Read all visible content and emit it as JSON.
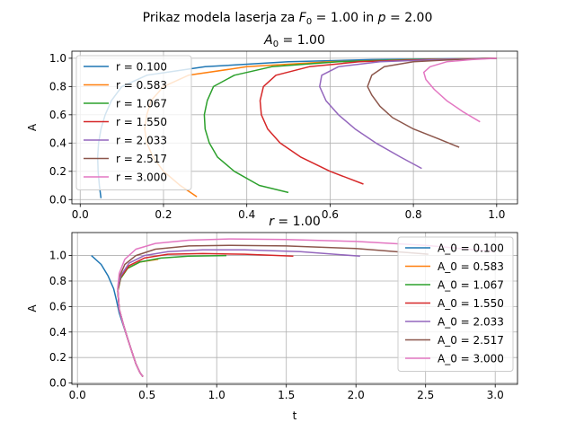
{
  "suptitle": "Prikaz modela laserja za F_0 = 1.00 in p = 2.00",
  "chart_data": [
    {
      "type": "line",
      "title": "A_0 = 1.00",
      "xlabel": "",
      "ylabel": "A",
      "xlim": [
        -0.02,
        1.05
      ],
      "ylim": [
        -0.03,
        1.05
      ],
      "xticks": [
        0.0,
        0.2,
        0.4,
        0.6,
        0.8,
        1.0
      ],
      "xtick_labels": [
        "0.0",
        "0.2",
        "0.4",
        "0.6",
        "0.8",
        "1.0"
      ],
      "yticks": [
        0.0,
        0.2,
        0.4,
        0.6,
        0.8,
        1.0
      ],
      "ytick_labels": [
        "0.0",
        "0.2",
        "0.4",
        "0.6",
        "0.8",
        "1.0"
      ],
      "grid": true,
      "legend_position": "upper-left",
      "series": [
        {
          "name": "r = 0.100",
          "color": "#1f77b4",
          "points": [
            [
              0.05,
              0.01
            ],
            [
              0.046,
              0.1
            ],
            [
              0.043,
              0.2
            ],
            [
              0.042,
              0.3
            ],
            [
              0.044,
              0.4
            ],
            [
              0.05,
              0.5
            ],
            [
              0.06,
              0.6
            ],
            [
              0.075,
              0.7
            ],
            [
              0.1,
              0.8
            ],
            [
              0.16,
              0.88
            ],
            [
              0.3,
              0.94
            ],
            [
              0.5,
              0.975
            ],
            [
              0.7,
              0.99
            ],
            [
              1.0,
              1.0
            ]
          ]
        },
        {
          "name": "r = 0.583",
          "color": "#ff7f0e",
          "points": [
            [
              0.28,
              0.02
            ],
            [
              0.24,
              0.1
            ],
            [
              0.2,
              0.2
            ],
            [
              0.175,
              0.3
            ],
            [
              0.16,
              0.4
            ],
            [
              0.155,
              0.5
            ],
            [
              0.16,
              0.6
            ],
            [
              0.17,
              0.7
            ],
            [
              0.2,
              0.8
            ],
            [
              0.26,
              0.88
            ],
            [
              0.4,
              0.94
            ],
            [
              0.6,
              0.975
            ],
            [
              0.8,
              0.99
            ],
            [
              1.0,
              1.0
            ]
          ]
        },
        {
          "name": "r = 1.067",
          "color": "#2ca02c",
          "points": [
            [
              0.5,
              0.05
            ],
            [
              0.43,
              0.1
            ],
            [
              0.37,
              0.2
            ],
            [
              0.33,
              0.3
            ],
            [
              0.31,
              0.4
            ],
            [
              0.3,
              0.5
            ],
            [
              0.298,
              0.6
            ],
            [
              0.305,
              0.7
            ],
            [
              0.32,
              0.8
            ],
            [
              0.37,
              0.88
            ],
            [
              0.46,
              0.94
            ],
            [
              0.62,
              0.975
            ],
            [
              0.8,
              0.99
            ],
            [
              1.0,
              1.0
            ]
          ]
        },
        {
          "name": "r = 1.550",
          "color": "#d62728",
          "points": [
            [
              0.68,
              0.11
            ],
            [
              0.6,
              0.2
            ],
            [
              0.53,
              0.3
            ],
            [
              0.48,
              0.4
            ],
            [
              0.45,
              0.5
            ],
            [
              0.435,
              0.6
            ],
            [
              0.432,
              0.7
            ],
            [
              0.44,
              0.8
            ],
            [
              0.47,
              0.88
            ],
            [
              0.55,
              0.94
            ],
            [
              0.67,
              0.975
            ],
            [
              0.83,
              0.99
            ],
            [
              1.0,
              1.0
            ]
          ]
        },
        {
          "name": "r = 2.033",
          "color": "#9467bd",
          "points": [
            [
              0.82,
              0.22
            ],
            [
              0.77,
              0.3
            ],
            [
              0.71,
              0.4
            ],
            [
              0.66,
              0.5
            ],
            [
              0.62,
              0.6
            ],
            [
              0.59,
              0.7
            ],
            [
              0.575,
              0.8
            ],
            [
              0.58,
              0.88
            ],
            [
              0.62,
              0.94
            ],
            [
              0.72,
              0.975
            ],
            [
              0.86,
              0.99
            ],
            [
              1.0,
              1.0
            ]
          ]
        },
        {
          "name": "r = 2.517",
          "color": "#8c564b",
          "points": [
            [
              0.91,
              0.37
            ],
            [
              0.86,
              0.43
            ],
            [
              0.8,
              0.5
            ],
            [
              0.75,
              0.58
            ],
            [
              0.72,
              0.66
            ],
            [
              0.7,
              0.74
            ],
            [
              0.69,
              0.8
            ],
            [
              0.7,
              0.88
            ],
            [
              0.73,
              0.94
            ],
            [
              0.8,
              0.975
            ],
            [
              0.9,
              0.99
            ],
            [
              1.0,
              1.0
            ]
          ]
        },
        {
          "name": "r = 3.000",
          "color": "#e377c2",
          "points": [
            [
              0.96,
              0.55
            ],
            [
              0.92,
              0.62
            ],
            [
              0.88,
              0.7
            ],
            [
              0.85,
              0.78
            ],
            [
              0.83,
              0.85
            ],
            [
              0.825,
              0.9
            ],
            [
              0.84,
              0.94
            ],
            [
              0.88,
              0.975
            ],
            [
              0.94,
              0.99
            ],
            [
              1.0,
              1.0
            ]
          ]
        }
      ]
    },
    {
      "type": "line",
      "title": "r = 1.00",
      "xlabel": "t",
      "ylabel": "A",
      "xlim": [
        -0.04,
        3.16
      ],
      "ylim": [
        -0.01,
        1.18
      ],
      "xticks": [
        0.0,
        0.5,
        1.0,
        1.5,
        2.0,
        2.5,
        3.0
      ],
      "xtick_labels": [
        "0.0",
        "0.5",
        "1.0",
        "1.5",
        "2.0",
        "2.5",
        "3.0"
      ],
      "yticks": [
        0.0,
        0.2,
        0.4,
        0.6,
        0.8,
        1.0
      ],
      "ytick_labels": [
        "0.0",
        "0.2",
        "0.4",
        "0.6",
        "0.8",
        "1.0"
      ],
      "grid": true,
      "legend_position": "upper-right",
      "series": [
        {
          "name": "A_0 = 0.100",
          "color": "#1f77b4",
          "points": [
            [
              0.1,
              1.0
            ],
            [
              0.17,
              0.93
            ],
            [
              0.22,
              0.84
            ],
            [
              0.26,
              0.74
            ],
            [
              0.28,
              0.65
            ],
            [
              0.3,
              0.55
            ],
            [
              0.33,
              0.45
            ],
            [
              0.36,
              0.35
            ],
            [
              0.39,
              0.25
            ],
            [
              0.42,
              0.15
            ],
            [
              0.45,
              0.08
            ],
            [
              0.47,
              0.05
            ]
          ]
        },
        {
          "name": "A_0 = 0.583",
          "color": "#ff7f0e",
          "points": [
            [
              0.58,
              0.97
            ],
            [
              0.45,
              0.95
            ],
            [
              0.36,
              0.9
            ],
            [
              0.31,
              0.82
            ],
            [
              0.29,
              0.72
            ],
            [
              0.3,
              0.58
            ],
            [
              0.33,
              0.46
            ],
            [
              0.36,
              0.35
            ],
            [
              0.39,
              0.25
            ],
            [
              0.42,
              0.15
            ],
            [
              0.45,
              0.08
            ],
            [
              0.47,
              0.05
            ]
          ]
        },
        {
          "name": "A_0 = 1.067",
          "color": "#2ca02c",
          "points": [
            [
              1.07,
              1.0
            ],
            [
              0.8,
              0.995
            ],
            [
              0.6,
              0.98
            ],
            [
              0.45,
              0.95
            ],
            [
              0.36,
              0.9
            ],
            [
              0.31,
              0.82
            ],
            [
              0.29,
              0.72
            ],
            [
              0.3,
              0.58
            ],
            [
              0.33,
              0.46
            ],
            [
              0.36,
              0.35
            ],
            [
              0.39,
              0.25
            ],
            [
              0.42,
              0.15
            ],
            [
              0.45,
              0.08
            ],
            [
              0.47,
              0.05
            ]
          ]
        },
        {
          "name": "A_0 = 1.550",
          "color": "#d62728",
          "points": [
            [
              1.55,
              0.995
            ],
            [
              1.2,
              1.01
            ],
            [
              0.9,
              1.015
            ],
            [
              0.65,
              1.01
            ],
            [
              0.48,
              0.98
            ],
            [
              0.37,
              0.92
            ],
            [
              0.31,
              0.83
            ],
            [
              0.29,
              0.73
            ],
            [
              0.3,
              0.58
            ],
            [
              0.33,
              0.46
            ],
            [
              0.36,
              0.35
            ],
            [
              0.39,
              0.25
            ],
            [
              0.42,
              0.15
            ],
            [
              0.45,
              0.08
            ],
            [
              0.47,
              0.05
            ]
          ]
        },
        {
          "name": "A_0 = 2.033",
          "color": "#9467bd",
          "points": [
            [
              2.03,
              0.995
            ],
            [
              1.6,
              1.03
            ],
            [
              1.2,
              1.045
            ],
            [
              0.9,
              1.045
            ],
            [
              0.65,
              1.03
            ],
            [
              0.48,
              1.0
            ],
            [
              0.37,
              0.94
            ],
            [
              0.31,
              0.84
            ],
            [
              0.29,
              0.74
            ],
            [
              0.3,
              0.58
            ],
            [
              0.33,
              0.46
            ],
            [
              0.36,
              0.35
            ],
            [
              0.39,
              0.25
            ],
            [
              0.42,
              0.15
            ],
            [
              0.45,
              0.08
            ],
            [
              0.47,
              0.05
            ]
          ]
        },
        {
          "name": "A_0 = 2.517",
          "color": "#8c564b",
          "points": [
            [
              2.52,
              1.01
            ],
            [
              2.0,
              1.055
            ],
            [
              1.5,
              1.075
            ],
            [
              1.1,
              1.08
            ],
            [
              0.8,
              1.075
            ],
            [
              0.56,
              1.05
            ],
            [
              0.42,
              1.0
            ],
            [
              0.34,
              0.93
            ],
            [
              0.3,
              0.83
            ],
            [
              0.29,
              0.74
            ],
            [
              0.3,
              0.58
            ],
            [
              0.33,
              0.46
            ],
            [
              0.36,
              0.35
            ],
            [
              0.39,
              0.25
            ],
            [
              0.42,
              0.15
            ],
            [
              0.45,
              0.08
            ],
            [
              0.47,
              0.05
            ]
          ]
        },
        {
          "name": "A_0 = 3.000",
          "color": "#e377c2",
          "points": [
            [
              3.0,
              1.03
            ],
            [
              2.5,
              1.08
            ],
            [
              2.0,
              1.11
            ],
            [
              1.5,
              1.125
            ],
            [
              1.1,
              1.13
            ],
            [
              0.8,
              1.12
            ],
            [
              0.56,
              1.095
            ],
            [
              0.42,
              1.05
            ],
            [
              0.34,
              0.97
            ],
            [
              0.3,
              0.86
            ],
            [
              0.29,
              0.75
            ],
            [
              0.3,
              0.58
            ],
            [
              0.33,
              0.46
            ],
            [
              0.36,
              0.35
            ],
            [
              0.39,
              0.25
            ],
            [
              0.42,
              0.15
            ],
            [
              0.45,
              0.08
            ],
            [
              0.47,
              0.05
            ]
          ]
        }
      ]
    }
  ]
}
